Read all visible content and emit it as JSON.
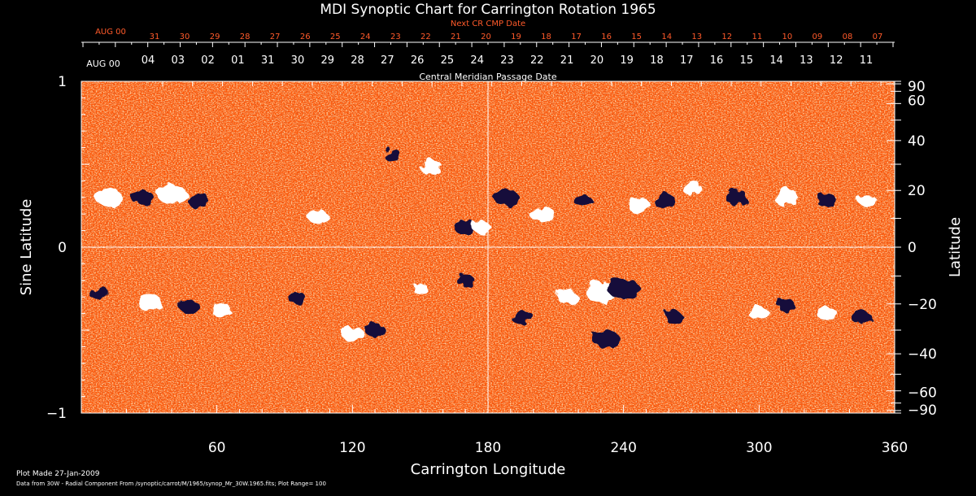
{
  "chart_data": {
    "type": "heatmap",
    "title": "MDI Synoptic Chart for Carrington Rotation 1965",
    "xlabel": "Carrington Longitude",
    "ylabel_left": "Sine Latitude",
    "ylabel_right": "Latitude",
    "top_axis_1_label": "Next CR CMP Date",
    "top_axis_2_label": "Central Meridian Passage Date",
    "xlim": [
      0,
      360
    ],
    "ylim": [
      -1,
      1
    ],
    "x_ticks": [
      60,
      120,
      180,
      240,
      300,
      360
    ],
    "x_tick_labels": [
      "60",
      "120",
      "180",
      "240",
      "300",
      "360"
    ],
    "y_left_ticks": [
      -1,
      0,
      1
    ],
    "y_left_tick_labels": [
      "−1",
      "0",
      "1"
    ],
    "y_right_ticks": [
      90,
      60,
      40,
      20,
      0,
      -20,
      -40,
      -60,
      -90
    ],
    "y_right_tick_labels": [
      "90",
      "60",
      "40",
      "20",
      "0",
      "−20",
      "−40",
      "−60",
      "−90"
    ],
    "next_cr_dates": {
      "start_label": "AUG 00",
      "labels": [
        "31",
        "30",
        "29",
        "28",
        "27",
        "26",
        "25",
        "24",
        "23",
        "22",
        "21",
        "20",
        "19",
        "18",
        "17",
        "16",
        "15",
        "14",
        "13",
        "12",
        "11",
        "10",
        "09",
        "08",
        "07"
      ]
    },
    "cmp_dates": {
      "start_label": "AUG 00",
      "labels": [
        "04",
        "03",
        "02",
        "01",
        "31",
        "30",
        "29",
        "28",
        "27",
        "26",
        "25",
        "24",
        "23",
        "22",
        "21",
        "20",
        "19",
        "18",
        "17",
        "16",
        "15",
        "14",
        "13",
        "12",
        "11"
      ]
    },
    "grid_lines": {
      "x": [
        180
      ],
      "y": [
        0
      ]
    },
    "range": 100,
    "colors": {
      "background": "#ff5a0a",
      "positive": "#ffffff",
      "negative": "#12103a",
      "axis_text_top1": "#ff5a2a",
      "axis": "#ffffff"
    },
    "active_regions": [
      {
        "lon": 12,
        "lat": 0.3,
        "r": 12,
        "polarity": "positive"
      },
      {
        "lon": 27,
        "lat": 0.3,
        "r": 10,
        "polarity": "negative"
      },
      {
        "lon": 40,
        "lat": 0.32,
        "r": 13,
        "polarity": "positive"
      },
      {
        "lon": 52,
        "lat": 0.28,
        "r": 10,
        "polarity": "negative"
      },
      {
        "lon": 105,
        "lat": 0.18,
        "r": 9,
        "polarity": "positive"
      },
      {
        "lon": 138,
        "lat": 0.55,
        "r": 8,
        "polarity": "negative"
      },
      {
        "lon": 155,
        "lat": 0.48,
        "r": 10,
        "polarity": "positive"
      },
      {
        "lon": 170,
        "lat": 0.12,
        "r": 10,
        "polarity": "negative"
      },
      {
        "lon": 177,
        "lat": 0.12,
        "r": 8,
        "polarity": "positive"
      },
      {
        "lon": 188,
        "lat": 0.3,
        "r": 11,
        "polarity": "negative"
      },
      {
        "lon": 204,
        "lat": 0.2,
        "r": 11,
        "polarity": "positive"
      },
      {
        "lon": 222,
        "lat": 0.28,
        "r": 8,
        "polarity": "negative"
      },
      {
        "lon": 247,
        "lat": 0.25,
        "r": 10,
        "polarity": "positive"
      },
      {
        "lon": 258,
        "lat": 0.28,
        "r": 10,
        "polarity": "negative"
      },
      {
        "lon": 270,
        "lat": 0.36,
        "r": 9,
        "polarity": "positive"
      },
      {
        "lon": 290,
        "lat": 0.3,
        "r": 10,
        "polarity": "negative"
      },
      {
        "lon": 312,
        "lat": 0.3,
        "r": 11,
        "polarity": "positive"
      },
      {
        "lon": 330,
        "lat": 0.28,
        "r": 9,
        "polarity": "negative"
      },
      {
        "lon": 348,
        "lat": 0.28,
        "r": 8,
        "polarity": "positive"
      },
      {
        "lon": 8,
        "lat": -0.28,
        "r": 9,
        "polarity": "negative"
      },
      {
        "lon": 30,
        "lat": -0.33,
        "r": 11,
        "polarity": "positive"
      },
      {
        "lon": 48,
        "lat": -0.36,
        "r": 9,
        "polarity": "negative"
      },
      {
        "lon": 62,
        "lat": -0.38,
        "r": 9,
        "polarity": "positive"
      },
      {
        "lon": 95,
        "lat": -0.3,
        "r": 8,
        "polarity": "negative"
      },
      {
        "lon": 120,
        "lat": -0.52,
        "r": 10,
        "polarity": "positive"
      },
      {
        "lon": 130,
        "lat": -0.5,
        "r": 9,
        "polarity": "negative"
      },
      {
        "lon": 150,
        "lat": -0.25,
        "r": 7,
        "polarity": "positive"
      },
      {
        "lon": 170,
        "lat": -0.2,
        "r": 8,
        "polarity": "negative"
      },
      {
        "lon": 195,
        "lat": -0.42,
        "r": 10,
        "polarity": "negative"
      },
      {
        "lon": 215,
        "lat": -0.3,
        "r": 9,
        "polarity": "positive"
      },
      {
        "lon": 230,
        "lat": -0.27,
        "r": 14,
        "polarity": "positive"
      },
      {
        "lon": 240,
        "lat": -0.25,
        "r": 14,
        "polarity": "negative"
      },
      {
        "lon": 232,
        "lat": -0.55,
        "r": 12,
        "polarity": "negative"
      },
      {
        "lon": 262,
        "lat": -0.42,
        "r": 8,
        "polarity": "negative"
      },
      {
        "lon": 300,
        "lat": -0.4,
        "r": 9,
        "polarity": "positive"
      },
      {
        "lon": 312,
        "lat": -0.35,
        "r": 8,
        "polarity": "negative"
      },
      {
        "lon": 330,
        "lat": -0.4,
        "r": 9,
        "polarity": "positive"
      },
      {
        "lon": 345,
        "lat": -0.42,
        "r": 9,
        "polarity": "negative"
      }
    ]
  },
  "footer": {
    "plot_made": "Plot Made 27-Jan-2009",
    "data_source": "Data from 30W - Radial Component From /synoptic/carrot/M/1965/synop_Mr_30W.1965.fits; Plot Range=  100"
  }
}
